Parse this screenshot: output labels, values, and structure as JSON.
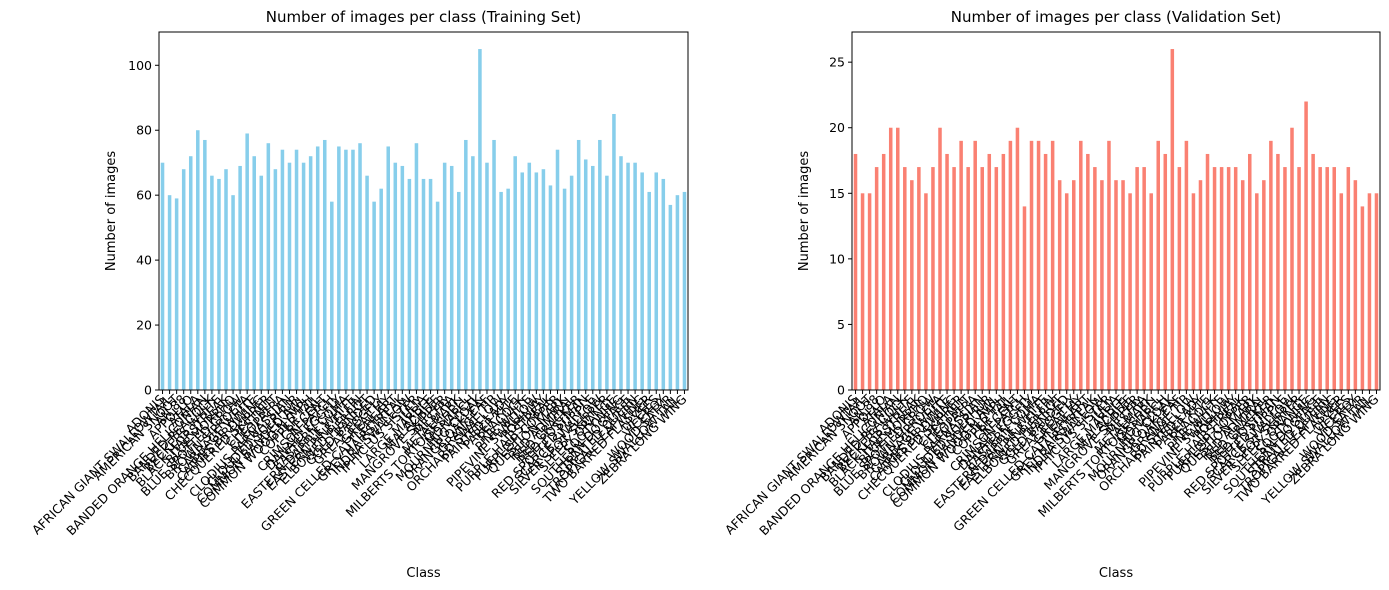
{
  "chart_data": [
    {
      "type": "bar",
      "title": "Number of images per class (Training Set)",
      "x_label": "Class",
      "y_label": "Number of images",
      "color": "#87ceeb",
      "categories": [
        "ADONIS",
        "AFRICAN GIANT SWALLOWTAIL",
        "AMERICAN SNOOT",
        "AN 88",
        "APPOLLO",
        "ATALA",
        "BANDED ORANGE HELICONIAN",
        "BANDED PEACOCK",
        "BECKERS WHITE",
        "BLACK HAIRSTREAK",
        "BLUE MORPHO",
        "BLUE SPOTTED CROW",
        "BROWN SIPROETA",
        "CABBAGE WHITE",
        "CAIRNS BIRDWING",
        "CHECQUERED SKIPPER",
        "CHESTNUT",
        "CLEOPATRA",
        "CLODIUS PARNASSIAN",
        "CLOUDED SULPHUR",
        "COMMON BANDED AWL",
        "COMMON WOOD-NYMPH",
        "COPPER TAIL",
        "CRECENT",
        "CRIMSON PATCH",
        "DANAID EGGFLY",
        "EASTERN COMA",
        "EASTERN DAPPLE WHITE",
        "EASTERN PINE ELFIN",
        "ELBOWED PIERROT",
        "GOLD BANDED",
        "GREAT EGGFLY",
        "GREAT JAY",
        "GREEN CELLED CATTLEHEART",
        "GREY HAIRSTREAK",
        "INDRA SWALLOW",
        "IPHICLUS SISTER",
        "JULIA",
        "LARGE MARBLE",
        "MALACHITE",
        "MANGROVE SKIPPER",
        "MESTRA",
        "METALMARK",
        "MILBERTS TORTOISESHELL",
        "MONARCH",
        "MOURNING CLOAK",
        "ORANGE OAKLEAF",
        "ORANGE TIP",
        "ORCHARD SWALLOW",
        "PAINTED LADY",
        "PAPER KITE",
        "PEACOCK",
        "PINE WHITE",
        "PIPEVINE SWALLOW",
        "POPINJAY",
        "PURPLE HAIRSTREAK",
        "PURPLISH COPPER",
        "QUESTION MARK",
        "RED ADMIRAL",
        "RED CRACKER",
        "RED POSTMAN",
        "RED SPOTTED PURPLE",
        "SCARCE SWALLOW",
        "SILVER SPOT SKIPPER",
        "SLEEPY ORANGE",
        "SOOTYWING",
        "SOUTHERN DOGFACE",
        "STRAITED QUEEN",
        "TROPICAL LEAFWING",
        "TWO BARRED FLASHER",
        "ULYSES",
        "VICEROY",
        "WOOD SATYR",
        "YELLOW SWALLOW TAIL",
        "ZEBRA LONG WING"
      ],
      "values": [
        70,
        60,
        59,
        68,
        72,
        80,
        77,
        66,
        65,
        68,
        60,
        69,
        79,
        72,
        66,
        76,
        68,
        74,
        70,
        74,
        70,
        72,
        75,
        77,
        58,
        75,
        74,
        74,
        76,
        66,
        58,
        62,
        75,
        70,
        69,
        65,
        76,
        65,
        65,
        58,
        70,
        69,
        61,
        77,
        72,
        105,
        70,
        77,
        61,
        62,
        72,
        67,
        70,
        67,
        68,
        63,
        74,
        62,
        66,
        77,
        71,
        69,
        77,
        66,
        85,
        72,
        70,
        70,
        67,
        61,
        67,
        65,
        57,
        60,
        61
      ],
      "ylim": [
        0,
        110.25
      ],
      "yticks": [
        0,
        20,
        40,
        60,
        80,
        100
      ]
    },
    {
      "type": "bar",
      "title": "Number of images per class (Validation Set)",
      "x_label": "Class",
      "y_label": "Number of images",
      "color": "#fa8072",
      "categories": [
        "ADONIS",
        "AFRICAN GIANT SWALLOWTAIL",
        "AMERICAN SNOOT",
        "AN 88",
        "APPOLLO",
        "ATALA",
        "BANDED ORANGE HELICONIAN",
        "BANDED PEACOCK",
        "BECKERS WHITE",
        "BLACK HAIRSTREAK",
        "BLUE MORPHO",
        "BLUE SPOTTED CROW",
        "BROWN SIPROETA",
        "CABBAGE WHITE",
        "CAIRNS BIRDWING",
        "CHECQUERED SKIPPER",
        "CHESTNUT",
        "CLEOPATRA",
        "CLODIUS PARNASSIAN",
        "CLOUDED SULPHUR",
        "COMMON BANDED AWL",
        "COMMON WOOD-NYMPH",
        "COPPER TAIL",
        "CRECENT",
        "CRIMSON PATCH",
        "DANAID EGGFLY",
        "EASTERN COMA",
        "EASTERN DAPPLE WHITE",
        "EASTERN PINE ELFIN",
        "ELBOWED PIERROT",
        "GOLD BANDED",
        "GREAT EGGFLY",
        "GREAT JAY",
        "GREEN CELLED CATTLEHEART",
        "GREY HAIRSTREAK",
        "INDRA SWALLOW",
        "IPHICLUS SISTER",
        "JULIA",
        "LARGE MARBLE",
        "MALACHITE",
        "MANGROVE SKIPPER",
        "MESTRA",
        "METALMARK",
        "MILBERTS TORTOISESHELL",
        "MONARCH",
        "MOURNING CLOAK",
        "ORANGE OAKLEAF",
        "ORANGE TIP",
        "ORCHARD SWALLOW",
        "PAINTED LADY",
        "PAPER KITE",
        "PEACOCK",
        "PINE WHITE",
        "PIPEVINE SWALLOW",
        "POPINJAY",
        "PURPLE HAIRSTREAK",
        "PURPLISH COPPER",
        "QUESTION MARK",
        "RED ADMIRAL",
        "RED CRACKER",
        "RED POSTMAN",
        "RED SPOTTED PURPLE",
        "SCARCE SWALLOW",
        "SILVER SPOT SKIPPER",
        "SLEEPY ORANGE",
        "SOOTYWING",
        "SOUTHERN DOGFACE",
        "STRAITED QUEEN",
        "TROPICAL LEAFWING",
        "TWO BARRED FLASHER",
        "ULYSES",
        "VICEROY",
        "WOOD SATYR",
        "YELLOW SWALLOW TAIL",
        "ZEBRA LONG WING"
      ],
      "values": [
        18,
        15,
        15,
        17,
        18,
        20,
        20,
        17,
        16,
        17,
        15,
        17,
        20,
        18,
        17,
        19,
        17,
        19,
        17,
        18,
        17,
        18,
        19,
        20,
        14,
        19,
        19,
        18,
        19,
        16,
        15,
        16,
        19,
        18,
        17,
        16,
        19,
        16,
        16,
        15,
        17,
        17,
        15,
        19,
        18,
        26,
        17,
        19,
        15,
        16,
        18,
        17,
        17,
        17,
        17,
        16,
        18,
        15,
        16,
        19,
        18,
        17,
        20,
        17,
        22,
        18,
        17,
        17,
        17,
        15,
        17,
        16,
        14,
        15,
        15
      ],
      "ylim": [
        0,
        27.3
      ],
      "yticks": [
        0,
        5,
        10,
        15,
        20,
        25
      ]
    }
  ]
}
